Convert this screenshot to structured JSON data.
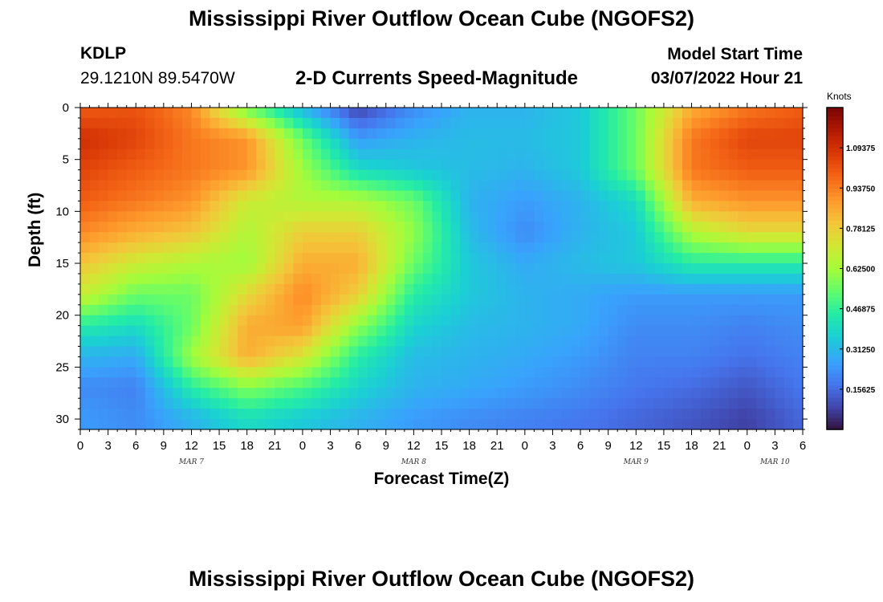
{
  "header": {
    "title": "Mississippi River Outflow Ocean Cube (NGOFS2)",
    "station": "KDLP",
    "coords": "29.1210N  89.5470W",
    "subtitle": "2-D Currents Speed-Magnitude",
    "model_start_label": "Model Start Time",
    "model_start_value": "03/07/2022 Hour 21"
  },
  "footer": {
    "title": "Mississippi River Outflow Ocean Cube (NGOFS2)"
  },
  "chart_data": {
    "type": "heatmap",
    "xlabel": "Forecast Time(Z)",
    "ylabel": "Depth (ft)",
    "x_tick_labels": [
      "0",
      "3",
      "6",
      "9",
      "12",
      "15",
      "18",
      "21",
      "0",
      "3",
      "6",
      "9",
      "12",
      "15",
      "18",
      "21",
      "0",
      "3",
      "6",
      "9",
      "12",
      "15",
      "18",
      "21",
      "0",
      "3",
      "6"
    ],
    "x_hours": [
      0,
      3,
      6,
      9,
      12,
      15,
      18,
      21,
      24,
      27,
      30,
      33,
      36,
      39,
      42,
      45,
      48,
      51,
      54,
      57,
      60,
      63,
      66,
      69,
      72,
      75,
      78
    ],
    "day_labels": [
      {
        "label": "MAR 7",
        "hour": 12
      },
      {
        "label": "MAR 8",
        "hour": 36
      },
      {
        "label": "MAR 9",
        "hour": 60
      },
      {
        "label": "MAR 10",
        "hour": 75
      }
    ],
    "x_range": [
      0,
      78
    ],
    "y_ticks": [
      0,
      5,
      10,
      15,
      20,
      25,
      30
    ],
    "y_range": [
      0,
      31
    ],
    "y_inverted": true,
    "colorbar": {
      "title": "Knots",
      "range": [
        0,
        1.25
      ],
      "tick_values": [
        0.15625,
        0.3125,
        0.46875,
        0.625,
        0.78125,
        0.9375,
        1.09375
      ],
      "tick_labels": [
        "0.15625",
        "0.31250",
        "0.46875",
        "0.62500",
        "0.78125",
        "0.93750",
        "1.09375"
      ],
      "colormap": "turbo"
    },
    "grid_hours": [
      0,
      6,
      12,
      18,
      24,
      30,
      36,
      42,
      48,
      54,
      60,
      66,
      72,
      78
    ],
    "grid_depths": [
      0,
      3,
      6,
      9,
      12,
      15,
      18,
      21,
      24,
      27,
      30
    ],
    "values": [
      [
        1.0,
        1.02,
        0.92,
        0.55,
        0.3,
        0.08,
        0.22,
        0.3,
        0.3,
        0.35,
        0.55,
        0.85,
        0.95,
        1.0
      ],
      [
        1.1,
        1.05,
        0.95,
        0.9,
        0.55,
        0.25,
        0.3,
        0.32,
        0.32,
        0.35,
        0.55,
        0.95,
        1.05,
        1.05
      ],
      [
        1.05,
        1.0,
        0.95,
        0.9,
        0.62,
        0.4,
        0.35,
        0.32,
        0.3,
        0.35,
        0.55,
        0.95,
        1.0,
        1.0
      ],
      [
        1.0,
        0.95,
        0.9,
        0.7,
        0.65,
        0.65,
        0.55,
        0.3,
        0.25,
        0.3,
        0.4,
        0.85,
        0.9,
        0.9
      ],
      [
        0.92,
        0.85,
        0.8,
        0.65,
        0.78,
        0.78,
        0.6,
        0.32,
        0.22,
        0.3,
        0.35,
        0.65,
        0.75,
        0.75
      ],
      [
        0.8,
        0.7,
        0.65,
        0.62,
        0.85,
        0.85,
        0.55,
        0.35,
        0.28,
        0.32,
        0.35,
        0.45,
        0.45,
        0.45
      ],
      [
        0.7,
        0.55,
        0.55,
        0.75,
        0.92,
        0.78,
        0.45,
        0.35,
        0.3,
        0.28,
        0.25,
        0.25,
        0.25,
        0.25
      ],
      [
        0.45,
        0.4,
        0.55,
        0.85,
        0.88,
        0.6,
        0.38,
        0.32,
        0.3,
        0.28,
        0.22,
        0.22,
        0.2,
        0.22
      ],
      [
        0.3,
        0.28,
        0.62,
        0.85,
        0.72,
        0.45,
        0.32,
        0.3,
        0.28,
        0.25,
        0.2,
        0.2,
        0.17,
        0.2
      ],
      [
        0.22,
        0.2,
        0.45,
        0.58,
        0.5,
        0.38,
        0.3,
        0.28,
        0.25,
        0.22,
        0.18,
        0.16,
        0.12,
        0.18
      ],
      [
        0.25,
        0.22,
        0.3,
        0.4,
        0.35,
        0.3,
        0.25,
        0.22,
        0.2,
        0.18,
        0.15,
        0.12,
        0.08,
        0.15
      ]
    ]
  }
}
